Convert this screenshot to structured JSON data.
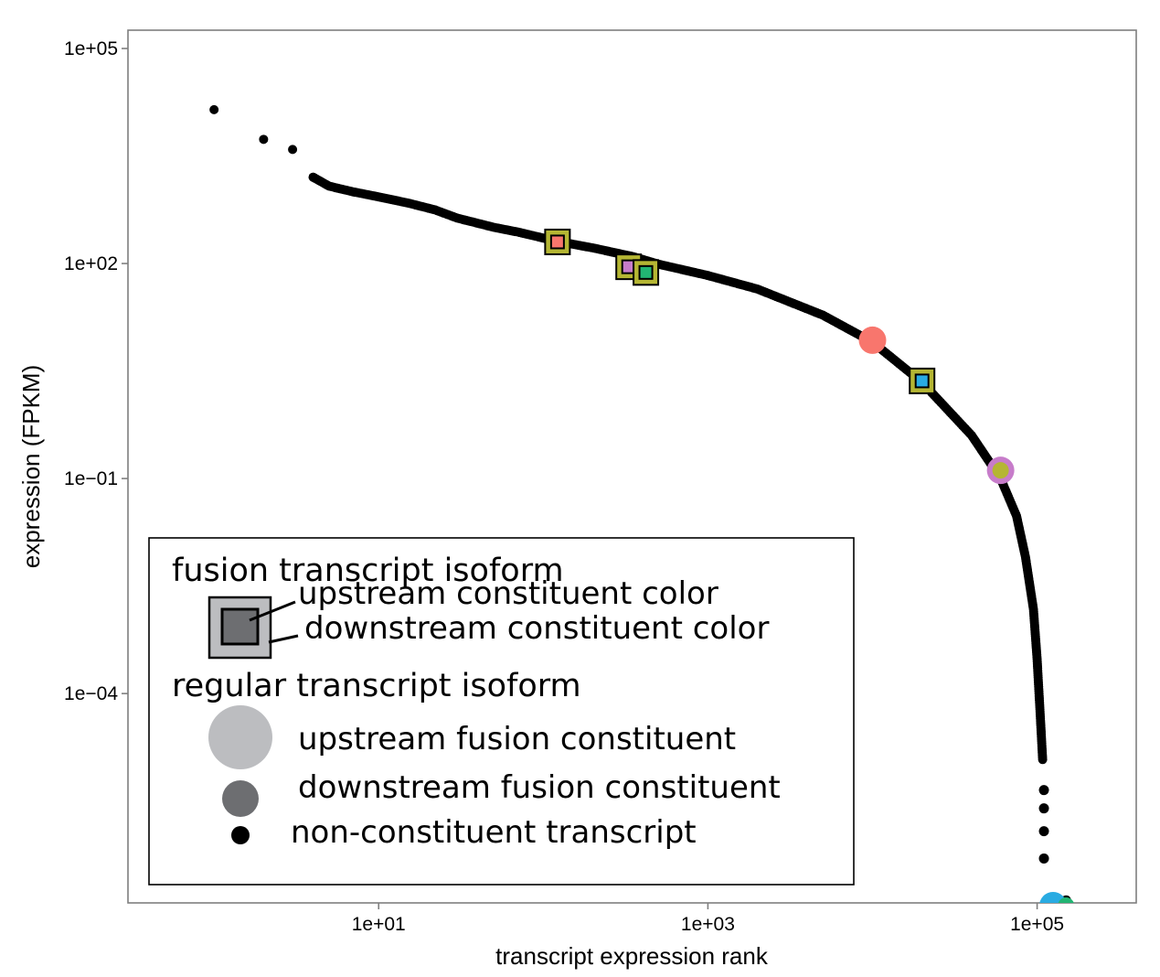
{
  "chart_data": {
    "type": "scatter",
    "title": "",
    "xlabel": "transcript expression rank",
    "ylabel": "expression (FPKM)",
    "x_scale": "log10",
    "y_scale": "log10",
    "xlim": [
      0.3,
      400000
    ],
    "ylim": [
      1.2e-07,
      180000
    ],
    "x_ticks": [
      {
        "value": 10,
        "label": "1e+01"
      },
      {
        "value": 1000,
        "label": "1e+03"
      },
      {
        "value": 100000,
        "label": "1e+05"
      }
    ],
    "y_ticks": [
      {
        "value": 100000,
        "label": "1e+05"
      },
      {
        "value": 100,
        "label": "1e+02"
      },
      {
        "value": 0.1,
        "label": "1e−01"
      },
      {
        "value": 0.0001,
        "label": "1e−04"
      }
    ],
    "grid": false,
    "legend_position": "bottom-left",
    "background_series": {
      "name": "non-constituent transcript",
      "color": "#000000",
      "curve": [
        {
          "x": 1,
          "y": 14000
        },
        {
          "x": 2,
          "y": 5400
        },
        {
          "x": 3,
          "y": 3900
        },
        {
          "x": 4,
          "y": 1600
        },
        {
          "x": 5,
          "y": 1200
        },
        {
          "x": 7,
          "y": 1000
        },
        {
          "x": 10,
          "y": 850
        },
        {
          "x": 15,
          "y": 700
        },
        {
          "x": 22,
          "y": 560
        },
        {
          "x": 30,
          "y": 430
        },
        {
          "x": 50,
          "y": 320
        },
        {
          "x": 70,
          "y": 275
        },
        {
          "x": 120,
          "y": 205
        },
        {
          "x": 200,
          "y": 165
        },
        {
          "x": 350,
          "y": 125
        },
        {
          "x": 500,
          "y": 98
        },
        {
          "x": 1000,
          "y": 68
        },
        {
          "x": 2000,
          "y": 44
        },
        {
          "x": 5000,
          "y": 19
        },
        {
          "x": 10000,
          "y": 8
        },
        {
          "x": 20000,
          "y": 2.2
        },
        {
          "x": 40000,
          "y": 0.4
        },
        {
          "x": 60000,
          "y": 0.1
        },
        {
          "x": 75000,
          "y": 0.03
        },
        {
          "x": 85000,
          "y": 0.008
        },
        {
          "x": 95000,
          "y": 0.0015
        },
        {
          "x": 100000,
          "y": 0.0003
        },
        {
          "x": 104000,
          "y": 6e-05
        },
        {
          "x": 108000,
          "y": 1.2e-05
        }
      ],
      "outliers": [
        {
          "x": 110000,
          "y": 4.5e-06
        },
        {
          "x": 110000,
          "y": 2.5e-06
        },
        {
          "x": 110000,
          "y": 1.2e-06
        },
        {
          "x": 110000,
          "y": 5e-07
        },
        {
          "x": 150000,
          "y": 1.3e-07
        }
      ]
    },
    "fusion_isoforms": [
      {
        "x": 122,
        "y": 200,
        "upstream_color": "#B5B633",
        "downstream_color": "#F8766D"
      },
      {
        "x": 330,
        "y": 90,
        "upstream_color": "#B5B633",
        "downstream_color": "#C77CCA"
      },
      {
        "x": 420,
        "y": 75,
        "upstream_color": "#B5B633",
        "downstream_color": "#22B573"
      },
      {
        "x": 20000,
        "y": 2.3,
        "upstream_color": "#B5B633",
        "downstream_color": "#29ABE2"
      }
    ],
    "regular_isoforms": [
      {
        "x": 10000,
        "y": 8.5,
        "role": "upstream",
        "color": "#F8766D"
      },
      {
        "x": 60000,
        "y": 0.13,
        "role": "upstream",
        "color": "#C77CCA"
      },
      {
        "x": 60000,
        "y": 0.13,
        "role": "downstream",
        "color": "#B5B633"
      },
      {
        "x": 125000,
        "y": 1.1e-07,
        "role": "upstream",
        "color": "#29ABE2"
      },
      {
        "x": 150000,
        "y": 1.1e-07,
        "role": "downstream",
        "color": "#22B573"
      }
    ],
    "legend": {
      "fusion_title": "fusion transcript isoform",
      "fusion_upstream_label": "upstream constituent color",
      "fusion_downstream_label": "downstream constituent color",
      "regular_title": "regular transcript isoform",
      "regular_upstream_label": "upstream fusion constituent",
      "regular_downstream_label": "downstream fusion constituent",
      "non_constituent_label": "non-constituent transcript",
      "upstream_swatch_color": "#BCBDC0",
      "downstream_swatch_color": "#6D6E71",
      "non_constituent_color": "#000000"
    }
  }
}
